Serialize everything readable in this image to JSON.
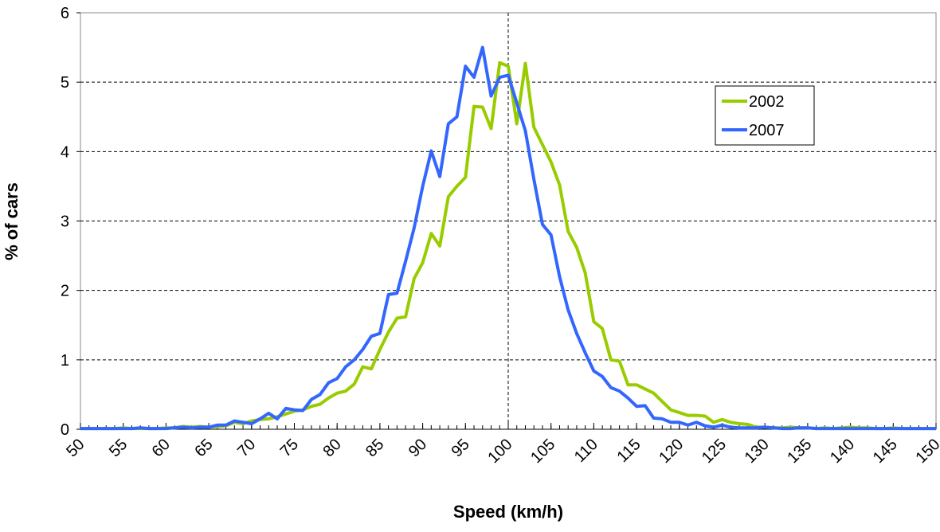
{
  "chart_data": {
    "type": "line",
    "x_label": "Speed (km/h)",
    "y_label": "% of cars",
    "x": [
      50,
      51,
      52,
      53,
      54,
      55,
      56,
      57,
      58,
      59,
      60,
      61,
      62,
      63,
      64,
      65,
      66,
      67,
      68,
      69,
      70,
      71,
      72,
      73,
      74,
      75,
      76,
      77,
      78,
      79,
      80,
      81,
      82,
      83,
      84,
      85,
      86,
      87,
      88,
      89,
      90,
      91,
      92,
      93,
      94,
      95,
      96,
      97,
      98,
      99,
      100,
      101,
      102,
      103,
      104,
      105,
      106,
      107,
      108,
      109,
      110,
      111,
      112,
      113,
      114,
      115,
      116,
      117,
      118,
      119,
      120,
      121,
      122,
      123,
      124,
      125,
      126,
      127,
      128,
      129,
      130,
      131,
      132,
      133,
      134,
      135,
      136,
      137,
      138,
      139,
      140,
      141,
      142,
      143,
      144,
      145,
      146,
      147,
      148,
      149,
      150
    ],
    "series": [
      {
        "name": "2002",
        "color": "#99cc00",
        "values": [
          0.01,
          0.01,
          0.01,
          0.01,
          0.01,
          0.02,
          0.01,
          0.01,
          0.01,
          0.01,
          0.02,
          0.02,
          0.04,
          0.03,
          0.04,
          0.03,
          0.04,
          0.05,
          0.1,
          0.08,
          0.12,
          0.14,
          0.15,
          0.18,
          0.22,
          0.26,
          0.28,
          0.33,
          0.36,
          0.45,
          0.52,
          0.55,
          0.65,
          0.9,
          0.87,
          1.15,
          1.4,
          1.6,
          1.62,
          2.17,
          2.4,
          2.82,
          2.64,
          3.35,
          3.5,
          3.63,
          4.65,
          4.64,
          4.33,
          5.28,
          5.23,
          4.4,
          5.27,
          4.35,
          4.1,
          3.85,
          3.52,
          2.85,
          2.62,
          2.25,
          1.55,
          1.45,
          1.0,
          0.98,
          0.64,
          0.64,
          0.58,
          0.52,
          0.4,
          0.28,
          0.24,
          0.2,
          0.2,
          0.19,
          0.1,
          0.14,
          0.1,
          0.08,
          0.07,
          0.03,
          0.03,
          0.02,
          0.02,
          0.03,
          0.02,
          0.02,
          0.01,
          0.02,
          0.01,
          0.02,
          0.03,
          0.02,
          0.02,
          0.01,
          0.01,
          0.02,
          0.01,
          0.01,
          0.01,
          0.01,
          0.01
        ]
      },
      {
        "name": "2007",
        "color": "#3366ff",
        "values": [
          0.01,
          0.01,
          0.01,
          0.01,
          0.01,
          0.01,
          0.01,
          0.02,
          0.01,
          0.01,
          0.01,
          0.02,
          0.03,
          0.02,
          0.03,
          0.03,
          0.06,
          0.06,
          0.12,
          0.1,
          0.08,
          0.15,
          0.23,
          0.15,
          0.3,
          0.28,
          0.27,
          0.43,
          0.5,
          0.67,
          0.73,
          0.9,
          1.0,
          1.15,
          1.34,
          1.38,
          1.94,
          1.96,
          2.42,
          2.9,
          3.5,
          4.01,
          3.64,
          4.4,
          4.5,
          5.23,
          5.07,
          5.5,
          4.8,
          5.07,
          5.1,
          4.7,
          4.3,
          3.6,
          2.95,
          2.8,
          2.2,
          1.72,
          1.38,
          1.1,
          0.84,
          0.76,
          0.6,
          0.55,
          0.45,
          0.33,
          0.34,
          0.16,
          0.15,
          0.1,
          0.1,
          0.06,
          0.1,
          0.05,
          0.03,
          0.06,
          0.03,
          0.02,
          0.02,
          0.02,
          0.03,
          0.02,
          0.01,
          0.01,
          0.02,
          0.02,
          0.01,
          0.01,
          0.01,
          0.01,
          0.01,
          0.01,
          0.01,
          0.01,
          0.01,
          0.01,
          0.01,
          0.01,
          0.01,
          0.01,
          0.01
        ]
      }
    ],
    "xlim": [
      50,
      150
    ],
    "ylim": [
      0,
      6
    ],
    "xticks": [
      50,
      55,
      60,
      65,
      70,
      75,
      80,
      85,
      90,
      95,
      100,
      105,
      110,
      115,
      120,
      125,
      130,
      135,
      140,
      145,
      150
    ],
    "yticks": [
      0,
      1,
      2,
      3,
      4,
      5,
      6
    ],
    "grid": true,
    "vline_x": 100,
    "legend": "upper-right"
  }
}
